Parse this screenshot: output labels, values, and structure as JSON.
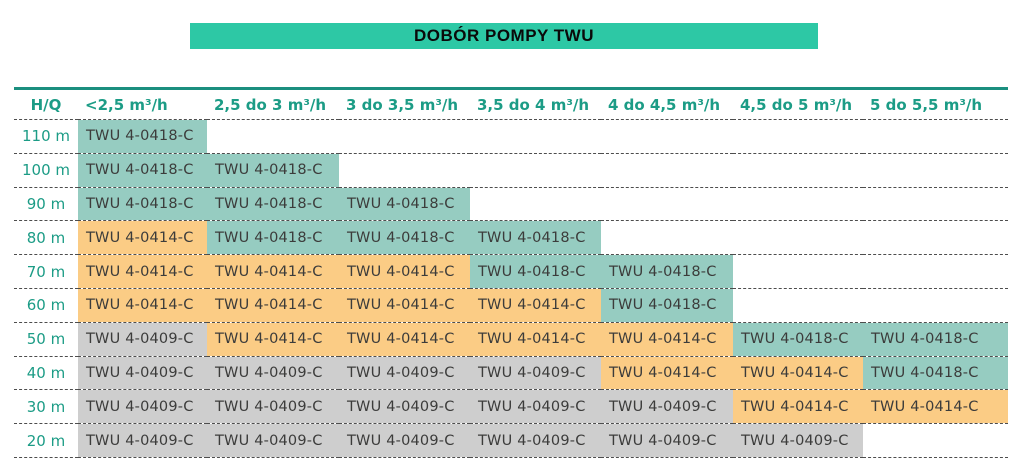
{
  "title": "DOBÓR POMPY TWU",
  "colors": {
    "banner": "#2dc8a5",
    "top_line": "#1b8f7f",
    "teal_cell": "#96ccc1",
    "orange_cell": "#fbcc85",
    "gray_cell": "#cecece",
    "header_text": "#1c9c86",
    "cell_text": "#3c3c3b"
  },
  "table": {
    "corner_label": "H/Q",
    "columns": [
      "<2,5 m³/h",
      "2,5 do 3 m³/h",
      "3 do 3,5 m³/h",
      "3,5 do 4 m³/h",
      "4 do 4,5 m³/h",
      "4,5 do 5 m³/h",
      "5 do 5,5 m³/h"
    ],
    "rows": [
      {
        "label": "110 m",
        "cells": [
          {
            "model": "TWU 4-0418-C",
            "color": "teal"
          },
          null,
          null,
          null,
          null,
          null,
          null
        ]
      },
      {
        "label": "100 m",
        "cells": [
          {
            "model": "TWU 4-0418-C",
            "color": "teal"
          },
          {
            "model": "TWU 4-0418-C",
            "color": "teal"
          },
          null,
          null,
          null,
          null,
          null
        ]
      },
      {
        "label": "90 m",
        "cells": [
          {
            "model": "TWU 4-0418-C",
            "color": "teal"
          },
          {
            "model": "TWU 4-0418-C",
            "color": "teal"
          },
          {
            "model": "TWU 4-0418-C",
            "color": "teal"
          },
          null,
          null,
          null,
          null
        ]
      },
      {
        "label": "80 m",
        "cells": [
          {
            "model": "TWU 4-0414-C",
            "color": "orange"
          },
          {
            "model": "TWU 4-0418-C",
            "color": "teal"
          },
          {
            "model": "TWU 4-0418-C",
            "color": "teal"
          },
          {
            "model": "TWU 4-0418-C",
            "color": "teal"
          },
          null,
          null,
          null
        ]
      },
      {
        "label": "70 m",
        "cells": [
          {
            "model": "TWU 4-0414-C",
            "color": "orange"
          },
          {
            "model": "TWU 4-0414-C",
            "color": "orange"
          },
          {
            "model": "TWU 4-0414-C",
            "color": "orange"
          },
          {
            "model": "TWU 4-0418-C",
            "color": "teal"
          },
          {
            "model": "TWU 4-0418-C",
            "color": "teal"
          },
          null,
          null
        ]
      },
      {
        "label": "60 m",
        "cells": [
          {
            "model": "TWU 4-0414-C",
            "color": "orange"
          },
          {
            "model": "TWU 4-0414-C",
            "color": "orange"
          },
          {
            "model": "TWU 4-0414-C",
            "color": "orange"
          },
          {
            "model": "TWU 4-0414-C",
            "color": "orange"
          },
          {
            "model": "TWU 4-0418-C",
            "color": "teal"
          },
          null,
          null
        ]
      },
      {
        "label": "50 m",
        "cells": [
          {
            "model": "TWU 4-0409-C",
            "color": "gray"
          },
          {
            "model": "TWU 4-0414-C",
            "color": "orange"
          },
          {
            "model": "TWU 4-0414-C",
            "color": "orange"
          },
          {
            "model": "TWU 4-0414-C",
            "color": "orange"
          },
          {
            "model": "TWU 4-0414-C",
            "color": "orange"
          },
          {
            "model": "TWU 4-0418-C",
            "color": "teal"
          },
          {
            "model": "TWU 4-0418-C",
            "color": "teal"
          }
        ]
      },
      {
        "label": "40 m",
        "cells": [
          {
            "model": "TWU 4-0409-C",
            "color": "gray"
          },
          {
            "model": "TWU 4-0409-C",
            "color": "gray"
          },
          {
            "model": "TWU 4-0409-C",
            "color": "gray"
          },
          {
            "model": "TWU 4-0409-C",
            "color": "gray"
          },
          {
            "model": "TWU 4-0414-C",
            "color": "orange"
          },
          {
            "model": "TWU 4-0414-C",
            "color": "orange"
          },
          {
            "model": "TWU 4-0418-C",
            "color": "teal"
          }
        ]
      },
      {
        "label": "30 m",
        "cells": [
          {
            "model": "TWU 4-0409-C",
            "color": "gray"
          },
          {
            "model": "TWU 4-0409-C",
            "color": "gray"
          },
          {
            "model": "TWU 4-0409-C",
            "color": "gray"
          },
          {
            "model": "TWU 4-0409-C",
            "color": "gray"
          },
          {
            "model": "TWU 4-0409-C",
            "color": "gray"
          },
          {
            "model": "TWU 4-0414-C",
            "color": "orange"
          },
          {
            "model": "TWU 4-0414-C",
            "color": "orange"
          }
        ]
      },
      {
        "label": "20 m",
        "cells": [
          {
            "model": "TWU 4-0409-C",
            "color": "gray"
          },
          {
            "model": "TWU 4-0409-C",
            "color": "gray"
          },
          {
            "model": "TWU 4-0409-C",
            "color": "gray"
          },
          {
            "model": "TWU 4-0409-C",
            "color": "gray"
          },
          {
            "model": "TWU 4-0409-C",
            "color": "gray"
          },
          {
            "model": "TWU 4-0409-C",
            "color": "gray"
          },
          null
        ]
      }
    ]
  }
}
